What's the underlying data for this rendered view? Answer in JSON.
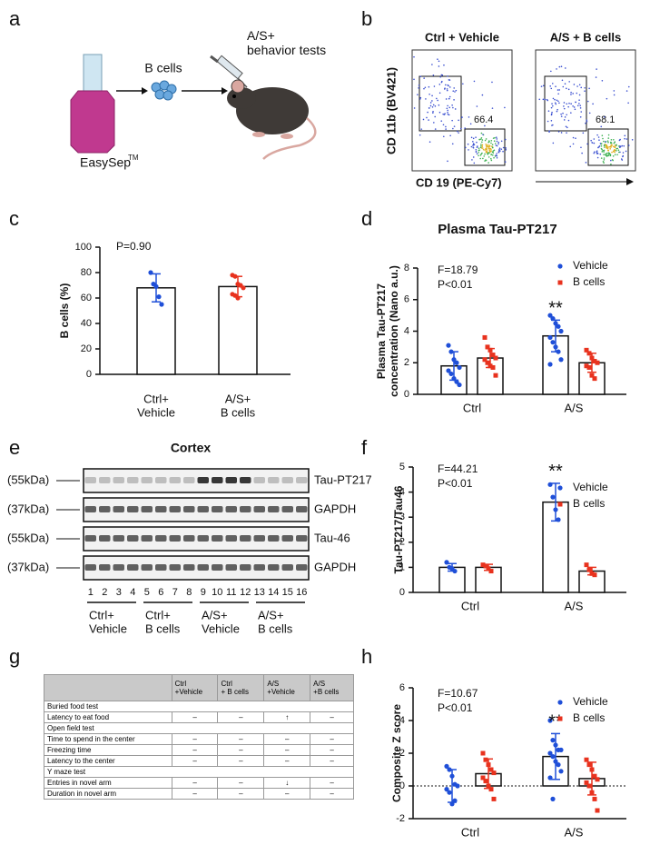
{
  "panels": [
    "a",
    "b",
    "c",
    "d",
    "e",
    "f",
    "g",
    "h"
  ],
  "schematic": {
    "kit": "EasySep",
    "kit_superscript": "TM",
    "cells": "B cells",
    "outcome": "A/S+\nbehavior tests"
  },
  "flow": {
    "titles": [
      "Ctrl + Vehicle",
      "A/S + B cells"
    ],
    "ylabel": "CD 11b (BV421)",
    "xlabel": "CD 19  (PE-Cy7)",
    "gate_values": [
      "66.4",
      "68.1"
    ]
  },
  "blot": {
    "title": "Cortex",
    "sizes": [
      "(55kDa)",
      "(37kDa)",
      "(55kDa)",
      "(37kDa)"
    ],
    "bands": [
      "Tau-PT217",
      "GAPDH",
      "Tau-46",
      "GAPDH"
    ],
    "lanes": [
      "1",
      "2",
      "3",
      "4",
      "5",
      "6",
      "7",
      "8",
      "9",
      "10",
      "11",
      "12",
      "13",
      "14",
      "15",
      "16"
    ],
    "groups": [
      "Ctrl+\nVehicle",
      "Ctrl+\nB cells",
      "A/S+\nVehicle",
      "A/S+\nB cells"
    ]
  },
  "table": {
    "columns": [
      "Ctrl\n+Vehicle",
      "Ctrl\n+ B cells",
      "A/S\n+Vehicle",
      "A/S\n+B cells"
    ],
    "rows": [
      {
        "label": "Buried food test"
      },
      {
        "label": "Latency to eat food",
        "cells": [
          "–",
          "–",
          "↑",
          "–"
        ]
      },
      {
        "label": "Open field test"
      },
      {
        "label": "Time to spend in the center",
        "cells": [
          "–",
          "–",
          "–",
          "–"
        ]
      },
      {
        "label": "Freezing time",
        "cells": [
          "–",
          "–",
          "–",
          "–"
        ]
      },
      {
        "label": "Latency to the center",
        "cells": [
          "–",
          "–",
          "–",
          "–"
        ]
      },
      {
        "label": "Y maze test"
      },
      {
        "label": "Entries in novel arm",
        "cells": [
          "–",
          "–",
          "↓",
          "–"
        ]
      },
      {
        "label": "Duration in novel arm",
        "cells": [
          "–",
          "–",
          "–",
          "–"
        ]
      }
    ]
  },
  "chart_data": [
    {
      "type": "bar",
      "ylabel": "B cells (%)",
      "categories": [
        "Ctrl+\nVehicle",
        "A/S+\nB cells"
      ],
      "values": [
        68,
        69
      ],
      "errors": [
        11,
        8
      ],
      "points": [
        [
          80,
          71,
          69,
          61,
          55
        ],
        [
          78,
          77,
          71,
          70,
          68,
          63,
          62,
          60
        ]
      ],
      "colors": [
        "#1f4fd8",
        "#e8321e"
      ],
      "marker": "circle",
      "ylim": [
        0,
        100
      ],
      "yticks": [
        0,
        20,
        40,
        60,
        80,
        100
      ],
      "stats": [
        "P=0.90"
      ]
    },
    {
      "type": "bar",
      "title": "Plasma Tau-PT217",
      "ylabel": "Plasma Tau-PT217\nconcentration (Nano a.u.)",
      "categories": [
        "Ctrl",
        "A/S"
      ],
      "series": [
        {
          "name": "Vehicle",
          "color": "#1f4fd8",
          "marker": "circle",
          "values": [
            1.8,
            3.7
          ],
          "errors": [
            0.9,
            1.0
          ],
          "points": [
            [
              3.1,
              2.7,
              2.2,
              2.0,
              1.7,
              1.5,
              1.3,
              1.0,
              0.8,
              0.6
            ],
            [
              5.0,
              4.8,
              4.5,
              4.3,
              4.0,
              3.6,
              3.3,
              3.0,
              2.7,
              2.2,
              1.9
            ]
          ]
        },
        {
          "name": "B cells",
          "color": "#e8321e",
          "marker": "square",
          "values": [
            2.3,
            2.0
          ],
          "errors": [
            0.6,
            0.6
          ],
          "points": [
            [
              3.6,
              3.0,
              2.8,
              2.5,
              2.3,
              2.2,
              2.0,
              1.8,
              1.7,
              1.2
            ],
            [
              2.8,
              2.6,
              2.3,
              2.1,
              2.0,
              1.8,
              1.7,
              1.2,
              1.0
            ]
          ]
        }
      ],
      "ylim": [
        0,
        8
      ],
      "yticks": [
        0,
        2,
        4,
        6,
        8
      ],
      "stats": [
        "F=18.79",
        "P<0.01"
      ],
      "significance": "**",
      "legend": "upper right"
    },
    {
      "type": "bar",
      "ylabel": "Tau-PT217/Tau46",
      "categories": [
        "Ctrl",
        "A/S"
      ],
      "series": [
        {
          "name": "Vehicle",
          "color": "#1f4fd8",
          "marker": "circle",
          "values": [
            1.0,
            3.6
          ],
          "errors": [
            0.15,
            0.75
          ],
          "points": [
            [
              1.2,
              1.0,
              0.95,
              0.85
            ],
            [
              4.3,
              3.8,
              3.3,
              2.9
            ]
          ]
        },
        {
          "name": "B cells",
          "color": "#e8321e",
          "marker": "square",
          "values": [
            1.0,
            0.85
          ],
          "errors": [
            0.12,
            0.15
          ],
          "points": [
            [
              1.1,
              1.05,
              0.95,
              0.85
            ],
            [
              1.1,
              0.9,
              0.75,
              0.7
            ]
          ]
        }
      ],
      "ylim": [
        0,
        5
      ],
      "yticks": [
        0,
        1,
        2,
        3,
        4,
        5
      ],
      "stats": [
        "F=44.21",
        "P<0.01"
      ],
      "significance": "**",
      "legend": "upper right"
    },
    {
      "type": "bar",
      "ylabel": "Composite Z score",
      "categories": [
        "Ctrl",
        "A/S"
      ],
      "series": [
        {
          "name": "Vehicle",
          "color": "#1f4fd8",
          "marker": "circle",
          "values": [
            0.0,
            1.8
          ],
          "errors": [
            1.0,
            1.4
          ],
          "points": [
            [
              1.2,
              1.0,
              0.6,
              0.1,
              0.0,
              -0.2,
              -0.4,
              -1.1,
              -0.9
            ],
            [
              4.0,
              2.8,
              2.5,
              2.2,
              2.2,
              2.0,
              1.8,
              1.5,
              1.3,
              0.9,
              0.5,
              -0.8
            ]
          ]
        },
        {
          "name": "B cells",
          "color": "#e8321e",
          "marker": "square",
          "values": [
            0.75,
            0.45
          ],
          "errors": [
            0.9,
            1.0
          ],
          "points": [
            [
              2.0,
              1.6,
              1.3,
              1.0,
              0.8,
              0.5,
              0.3,
              0.0,
              -0.2,
              -0.8
            ],
            [
              1.6,
              1.3,
              1.0,
              0.6,
              0.4,
              0.2,
              0.0,
              -0.4,
              -0.8,
              -1.5
            ]
          ]
        }
      ],
      "ylim": [
        -2,
        6
      ],
      "yticks": [
        -2,
        0,
        2,
        4,
        6
      ],
      "zero_line": true,
      "stats": [
        "F=10.67",
        "P<0.01"
      ],
      "significance": "**",
      "legend": "upper right"
    }
  ]
}
